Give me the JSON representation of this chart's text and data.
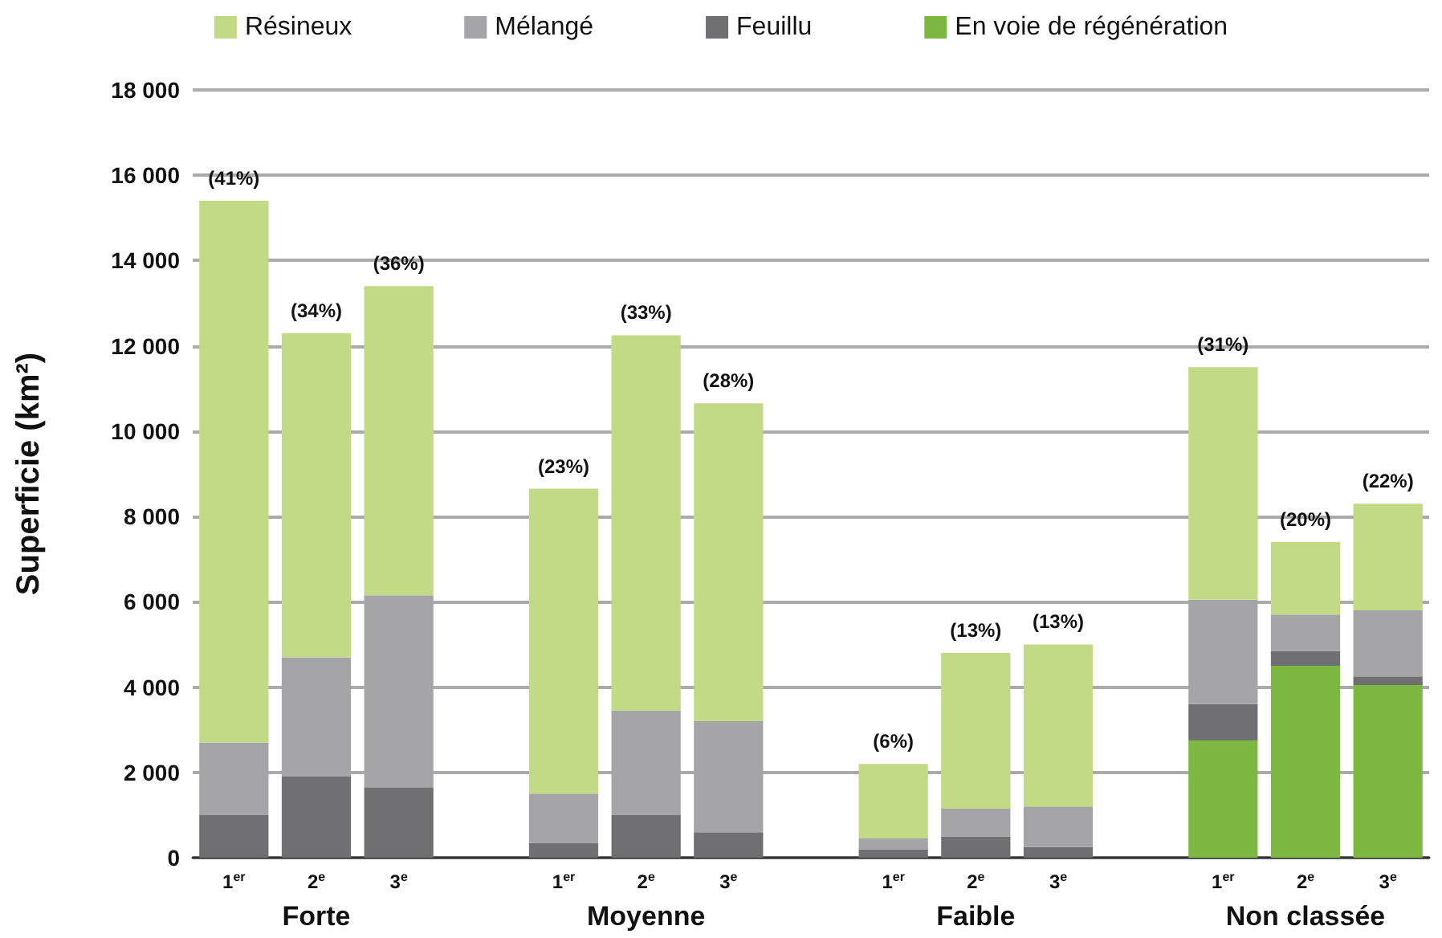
{
  "chart_data": {
    "type": "bar",
    "stacked": true,
    "ylabel": "Superficie (km²)",
    "categories": [
      "1$^{er}$",
      "2$^{e}$",
      "3$^{e}$",
      null,
      "1$^{er}$",
      "2$^{e}$",
      "3$^{e}$",
      null,
      "1$^{er}$",
      "2$^{e}$",
      "3$^{e}$",
      null,
      "1$^{er}$",
      "2$^{e}$",
      "3$^{e}$"
    ],
    "series": [
      {
        "name": "En voie de régénération",
        "color": "#7cb842",
        "values": [
          null,
          null,
          null,
          null,
          null,
          null,
          null,
          null,
          null,
          null,
          null,
          null,
          2750,
          4500,
          4050
        ]
      },
      {
        "name": "Feuillu",
        "color": "#707072",
        "values": [
          1000,
          1900,
          1650,
          null,
          350,
          1000,
          600,
          null,
          200,
          500,
          250,
          null,
          850,
          350,
          200
        ]
      },
      {
        "name": "Mélangé",
        "color": "#a5a5a7",
        "values": [
          1700,
          2800,
          4500,
          null,
          1150,
          2450,
          2600,
          null,
          250,
          650,
          950,
          null,
          2450,
          850,
          1550
        ]
      },
      {
        "name": "Résineux",
        "color": "#c2d985",
        "values": [
          12700,
          7600,
          7250,
          null,
          7150,
          8800,
          7450,
          null,
          1750,
          3650,
          3800,
          null,
          5450,
          1700,
          2500
        ]
      }
    ],
    "annotations": [
      "Forte",
      "Moyenne",
      "Faible",
      "Non classée",
      "(41%)",
      "(34%)",
      "(36%)",
      "(23%)",
      "(33%)",
      "(28%)",
      "(6%)",
      "(13%)",
      "(13%)",
      "(31%)",
      "(20%)",
      "(22%)"
    ],
    "ylim": [
      0,
      18000
    ],
    "yticks": [
      {
        "value": 0,
        "label": "0"
      },
      {
        "value": 2000,
        "label": "2 000"
      },
      {
        "value": 4000,
        "label": "4 000"
      },
      {
        "value": 6000,
        "label": "6 000"
      },
      {
        "value": 8000,
        "label": "8 000"
      },
      {
        "value": 10000,
        "label": "10 000"
      },
      {
        "value": 12000,
        "label": "12 000"
      },
      {
        "value": 14000,
        "label": "14 000"
      },
      {
        "value": 16000,
        "label": "16 000"
      },
      {
        "value": 18000,
        "label": "18 000"
      }
    ],
    "grid": "y",
    "legend": "top"
  }
}
